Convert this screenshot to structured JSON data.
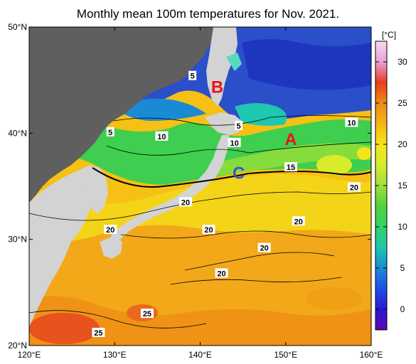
{
  "title": "Monthly mean 100m temperatures for Nov. 2021.",
  "map": {
    "lon_range": [
      120,
      160
    ],
    "lat_range": [
      20,
      50
    ],
    "lon_ticks": [
      {
        "value": 120,
        "label": "120°E"
      },
      {
        "value": 130,
        "label": "130°E"
      },
      {
        "value": 140,
        "label": "140°E"
      },
      {
        "value": 150,
        "label": "150°E"
      },
      {
        "value": 160,
        "label": "160°E"
      }
    ],
    "lat_ticks": [
      {
        "value": 20,
        "label": "20°N"
      },
      {
        "value": 30,
        "label": "30°N"
      },
      {
        "value": 40,
        "label": "40°N"
      },
      {
        "value": 50,
        "label": "50°N"
      }
    ],
    "contour_labels": [
      {
        "text": "5",
        "lon": 139.1,
        "lat": 45.4
      },
      {
        "text": "5",
        "lon": 129.5,
        "lat": 40.1
      },
      {
        "text": "5",
        "lon": 144.5,
        "lat": 40.7
      },
      {
        "text": "10",
        "lon": 135.5,
        "lat": 39.7
      },
      {
        "text": "10",
        "lon": 144.0,
        "lat": 39.1
      },
      {
        "text": "10",
        "lon": 157.7,
        "lat": 41.0
      },
      {
        "text": "15",
        "lon": 150.6,
        "lat": 36.8
      },
      {
        "text": "20",
        "lon": 158.0,
        "lat": 34.9
      },
      {
        "text": "20",
        "lon": 138.3,
        "lat": 33.5
      },
      {
        "text": "20",
        "lon": 129.5,
        "lat": 30.9
      },
      {
        "text": "20",
        "lon": 141.0,
        "lat": 30.9
      },
      {
        "text": "20",
        "lon": 151.5,
        "lat": 31.7
      },
      {
        "text": "20",
        "lon": 147.5,
        "lat": 29.2
      },
      {
        "text": "20",
        "lon": 142.5,
        "lat": 26.8
      },
      {
        "text": "25",
        "lon": 133.8,
        "lat": 23.0
      },
      {
        "text": "25",
        "lon": 128.1,
        "lat": 21.2
      }
    ],
    "markers": [
      {
        "text": "A",
        "lon": 150.6,
        "lat": 39.5,
        "color": "#e8141e"
      },
      {
        "text": "B",
        "lon": 142.0,
        "lat": 44.4,
        "color": "#e8141e"
      },
      {
        "text": "C",
        "lon": 144.5,
        "lat": 36.3,
        "color": "#3f53c4"
      }
    ],
    "colors": {
      "land": "#5f5f5f",
      "warm_core": "#f6b412",
      "cold_core": "#1e36bf",
      "coastline": "#000000"
    }
  },
  "colorbar": {
    "unit_label": "[°C]",
    "range": [
      -2.5,
      32.5
    ],
    "ticks": [
      0,
      5,
      10,
      15,
      20,
      25,
      30
    ],
    "tick_labels": [
      "0",
      "5",
      "10",
      "15",
      "20",
      "25",
      "30"
    ],
    "stops": [
      {
        "t": -2.5,
        "color": "#5b0ab2"
      },
      {
        "t": 0,
        "color": "#2c18d4"
      },
      {
        "t": 2.5,
        "color": "#1e50e8"
      },
      {
        "t": 5,
        "color": "#1a8ad6"
      },
      {
        "t": 7.5,
        "color": "#1ec7b0"
      },
      {
        "t": 10,
        "color": "#30d36a"
      },
      {
        "t": 12.5,
        "color": "#52d23a"
      },
      {
        "t": 15,
        "color": "#9ee03a"
      },
      {
        "t": 17.5,
        "color": "#d8ec2a"
      },
      {
        "t": 20,
        "color": "#f5e61a"
      },
      {
        "t": 22.5,
        "color": "#f6b412"
      },
      {
        "t": 25,
        "color": "#f08b1a"
      },
      {
        "t": 27.5,
        "color": "#eb3b1c"
      },
      {
        "t": 30,
        "color": "#e8a0d8"
      },
      {
        "t": 32.5,
        "color": "#f9d8f2"
      }
    ]
  }
}
